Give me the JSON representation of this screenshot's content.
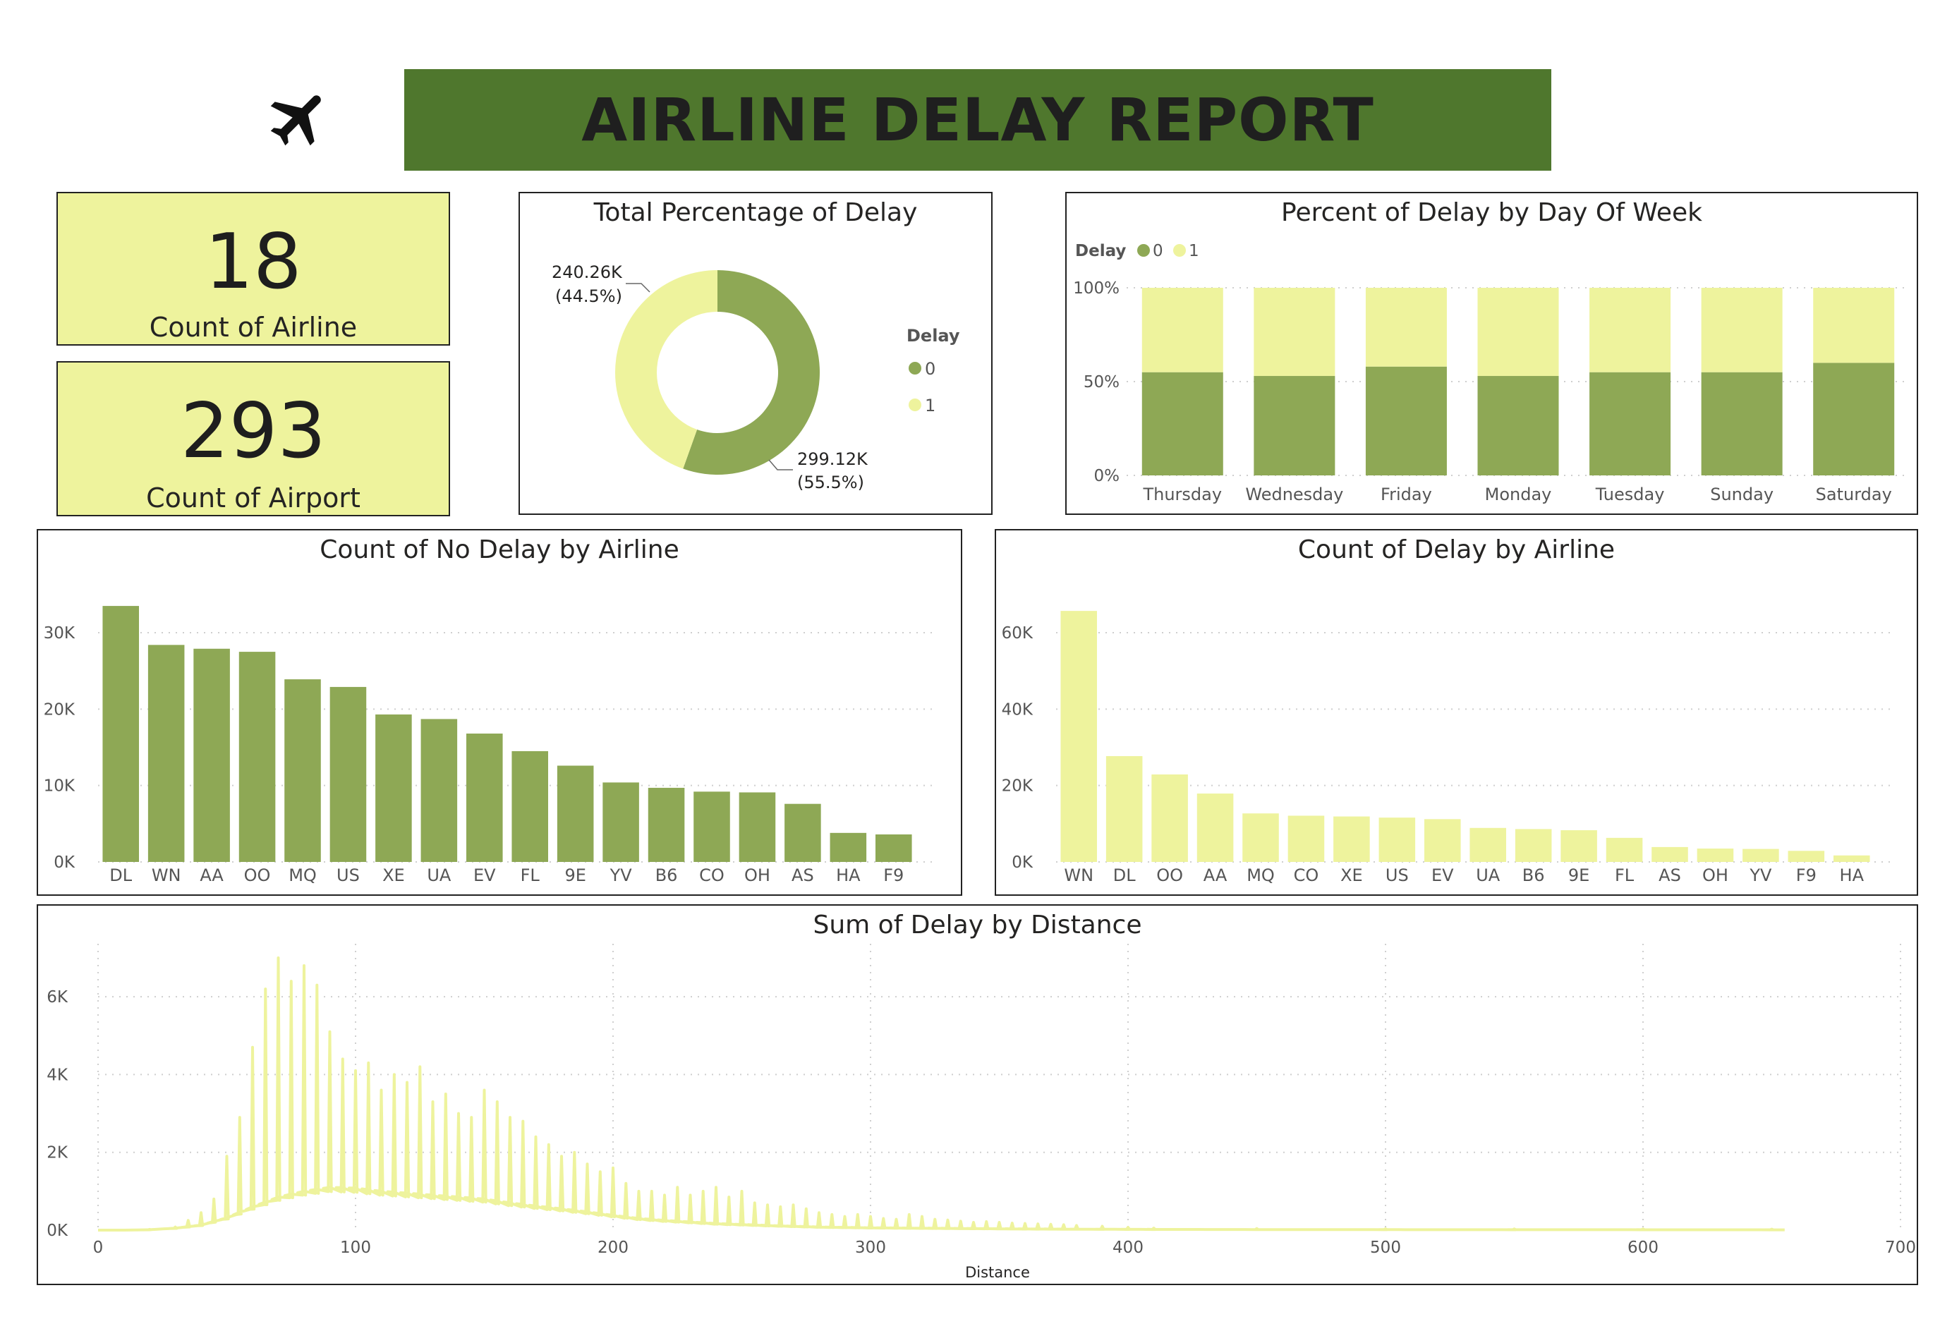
{
  "header": {
    "title": "AIRLINE DELAY REPORT",
    "plane_icon": "airplane-icon"
  },
  "colors": {
    "banner": "#4f772d",
    "kpi_bg": "#eef39d",
    "dark_green": "#8ea855",
    "light_yellow": "#eef39d"
  },
  "kpis": [
    {
      "value": "18",
      "label": "Count of Airline"
    },
    {
      "value": "293",
      "label": "Count of Airport"
    }
  ],
  "donut": {
    "title": "Total Percentage of Delay",
    "legend_title": "Delay",
    "slices": [
      {
        "name": "0",
        "value": 299.12,
        "label": "299.12K",
        "pct": "(55.5%)",
        "color": "#8ea855"
      },
      {
        "name": "1",
        "value": 240.26,
        "label": "240.26K",
        "pct": "(44.5%)",
        "color": "#eef39d"
      }
    ]
  },
  "chart_data": [
    {
      "type": "bar",
      "stacked": true,
      "title": "Percent of Delay by Day Of Week",
      "legend_title": "Delay",
      "legend_placement": "top-left",
      "categories": [
        "Thursday",
        "Wednesday",
        "Friday",
        "Monday",
        "Tuesday",
        "Sunday",
        "Saturday"
      ],
      "series": [
        {
          "name": "0",
          "values": [
            55,
            53,
            58,
            53,
            55,
            55,
            60
          ],
          "color": "#8ea855"
        },
        {
          "name": "1",
          "values": [
            45,
            47,
            42,
            47,
            45,
            45,
            40
          ],
          "color": "#eef39d"
        }
      ],
      "ylim": [
        0,
        100
      ],
      "yticks": [
        "0%",
        "50%",
        "100%"
      ]
    },
    {
      "type": "bar",
      "title": "Count of No Delay by Airline",
      "categories": [
        "DL",
        "WN",
        "AA",
        "OO",
        "MQ",
        "US",
        "XE",
        "UA",
        "EV",
        "FL",
        "9E",
        "YV",
        "B6",
        "CO",
        "OH",
        "AS",
        "HA",
        "F9"
      ],
      "values": [
        33500,
        28400,
        27900,
        27500,
        23900,
        22900,
        19300,
        18700,
        16800,
        14500,
        12600,
        10400,
        9700,
        9200,
        9100,
        7600,
        3800,
        3600
      ],
      "ylim": [
        0,
        36000
      ],
      "yticks": [
        "0K",
        "10K",
        "20K",
        "30K"
      ],
      "color": "#8ea855"
    },
    {
      "type": "bar",
      "title": "Count of Delay by Airline",
      "categories": [
        "WN",
        "DL",
        "OO",
        "AA",
        "MQ",
        "CO",
        "XE",
        "US",
        "EV",
        "UA",
        "B6",
        "9E",
        "FL",
        "AS",
        "OH",
        "YV",
        "F9",
        "HA"
      ],
      "values": [
        65700,
        27700,
        22900,
        17900,
        12700,
        12100,
        11900,
        11600,
        11200,
        8900,
        8600,
        8300,
        6300,
        3900,
        3500,
        3400,
        2900,
        1700
      ],
      "ylim": [
        0,
        72000
      ],
      "yticks": [
        "0K",
        "20K",
        "40K",
        "60K"
      ],
      "color": "#eef39d"
    },
    {
      "type": "line",
      "title": "Sum of Delay by Distance",
      "xlabel": "Distance",
      "xlim": [
        0,
        700
      ],
      "ylim": [
        0,
        7000
      ],
      "xticks": [
        "0",
        "100",
        "200",
        "300",
        "400",
        "500",
        "600",
        "700"
      ],
      "yticks": [
        "0K",
        "2K",
        "4K",
        "6K"
      ],
      "color": "#eef39d",
      "peaks": [
        [
          20,
          20
        ],
        [
          30,
          80
        ],
        [
          35,
          250
        ],
        [
          40,
          450
        ],
        [
          45,
          800
        ],
        [
          50,
          1900
        ],
        [
          55,
          2900
        ],
        [
          60,
          4700
        ],
        [
          65,
          6200
        ],
        [
          70,
          7000
        ],
        [
          75,
          6400
        ],
        [
          80,
          6800
        ],
        [
          85,
          6300
        ],
        [
          90,
          5100
        ],
        [
          95,
          4400
        ],
        [
          100,
          4100
        ],
        [
          105,
          4300
        ],
        [
          110,
          3600
        ],
        [
          115,
          4000
        ],
        [
          120,
          3800
        ],
        [
          125,
          4200
        ],
        [
          130,
          3300
        ],
        [
          135,
          3500
        ],
        [
          140,
          3000
        ],
        [
          145,
          2900
        ],
        [
          150,
          3600
        ],
        [
          155,
          3300
        ],
        [
          160,
          2900
        ],
        [
          165,
          2800
        ],
        [
          170,
          2400
        ],
        [
          175,
          2200
        ],
        [
          180,
          1900
        ],
        [
          185,
          2000
        ],
        [
          190,
          1700
        ],
        [
          195,
          1500
        ],
        [
          200,
          1600
        ],
        [
          205,
          1200
        ],
        [
          210,
          1000
        ],
        [
          215,
          1000
        ],
        [
          220,
          900
        ],
        [
          225,
          1100
        ],
        [
          230,
          900
        ],
        [
          235,
          1000
        ],
        [
          240,
          1100
        ],
        [
          245,
          850
        ],
        [
          250,
          1000
        ],
        [
          255,
          700
        ],
        [
          260,
          650
        ],
        [
          265,
          600
        ],
        [
          270,
          650
        ],
        [
          275,
          550
        ],
        [
          280,
          450
        ],
        [
          285,
          400
        ],
        [
          290,
          350
        ],
        [
          295,
          400
        ],
        [
          300,
          350
        ],
        [
          305,
          300
        ],
        [
          310,
          280
        ],
        [
          315,
          400
        ],
        [
          320,
          350
        ],
        [
          325,
          280
        ],
        [
          330,
          260
        ],
        [
          335,
          230
        ],
        [
          340,
          200
        ],
        [
          345,
          220
        ],
        [
          350,
          200
        ],
        [
          355,
          180
        ],
        [
          360,
          170
        ],
        [
          365,
          160
        ],
        [
          370,
          150
        ],
        [
          375,
          140
        ],
        [
          380,
          120
        ],
        [
          390,
          100
        ],
        [
          400,
          70
        ],
        [
          410,
          50
        ],
        [
          450,
          40
        ],
        [
          500,
          35
        ],
        [
          550,
          30
        ],
        [
          600,
          30
        ],
        [
          650,
          25
        ]
      ],
      "baseline": [
        [
          0,
          0
        ],
        [
          10,
          0
        ],
        [
          20,
          10
        ],
        [
          30,
          50
        ],
        [
          40,
          130
        ],
        [
          50,
          320
        ],
        [
          60,
          600
        ],
        [
          70,
          850
        ],
        [
          80,
          1000
        ],
        [
          90,
          1100
        ],
        [
          100,
          1080
        ],
        [
          110,
          1000
        ],
        [
          120,
          950
        ],
        [
          130,
          900
        ],
        [
          140,
          850
        ],
        [
          150,
          800
        ],
        [
          160,
          700
        ],
        [
          170,
          620
        ],
        [
          180,
          550
        ],
        [
          190,
          470
        ],
        [
          200,
          380
        ],
        [
          210,
          300
        ],
        [
          220,
          250
        ],
        [
          240,
          170
        ],
        [
          260,
          120
        ],
        [
          280,
          80
        ],
        [
          300,
          60
        ],
        [
          320,
          50
        ],
        [
          340,
          40
        ],
        [
          360,
          30
        ],
        [
          380,
          25
        ],
        [
          400,
          20
        ],
        [
          450,
          15
        ],
        [
          500,
          12
        ],
        [
          550,
          10
        ],
        [
          600,
          10
        ],
        [
          655,
          8
        ]
      ]
    }
  ]
}
